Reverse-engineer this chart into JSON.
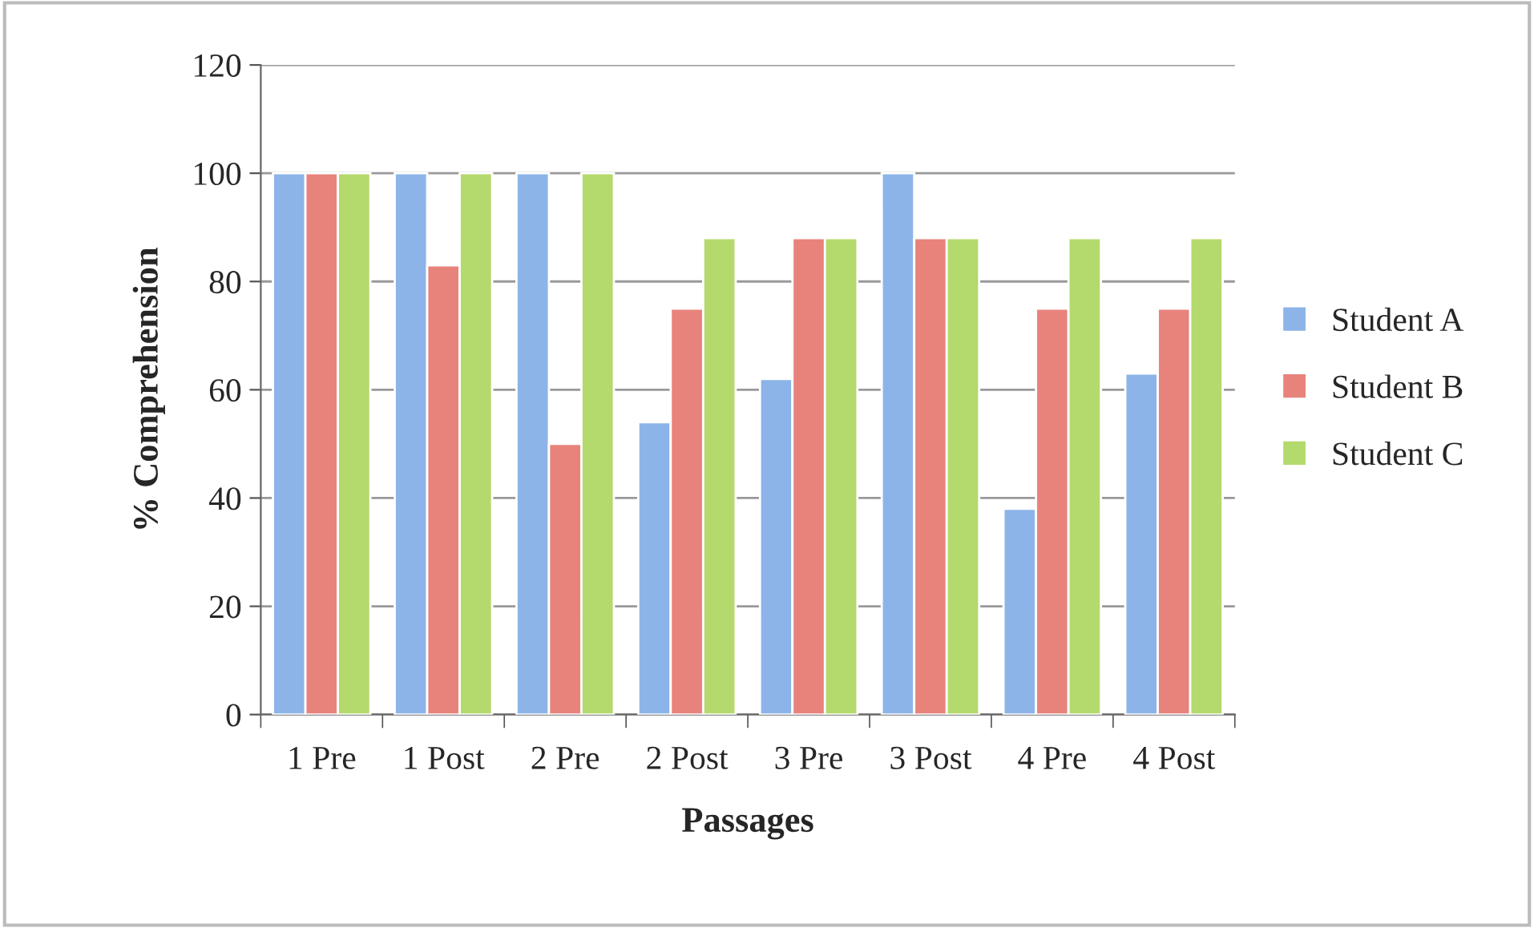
{
  "chart_data": {
    "type": "bar",
    "xlabel": "Passages",
    "ylabel": "% Comprehension",
    "categories": [
      "1 Pre",
      "1 Post",
      "2 Pre",
      "2 Post",
      "3 Pre",
      "3 Post",
      "4 Pre",
      "4 Post"
    ],
    "series": [
      {
        "name": "Student A",
        "color": "#8cb4e8",
        "values": [
          100,
          100,
          100,
          54,
          62,
          100,
          38,
          63
        ]
      },
      {
        "name": "Student B",
        "color": "#e8837c",
        "values": [
          100,
          83,
          50,
          75,
          88,
          88,
          75,
          75
        ]
      },
      {
        "name": "Student C",
        "color": "#b4d96c",
        "values": [
          100,
          100,
          100,
          88,
          88,
          88,
          88,
          88
        ]
      }
    ],
    "ylim": [
      0,
      120
    ],
    "yticks": [
      0,
      20,
      40,
      60,
      80,
      100,
      120
    ],
    "grid": "y",
    "legend": "right"
  }
}
